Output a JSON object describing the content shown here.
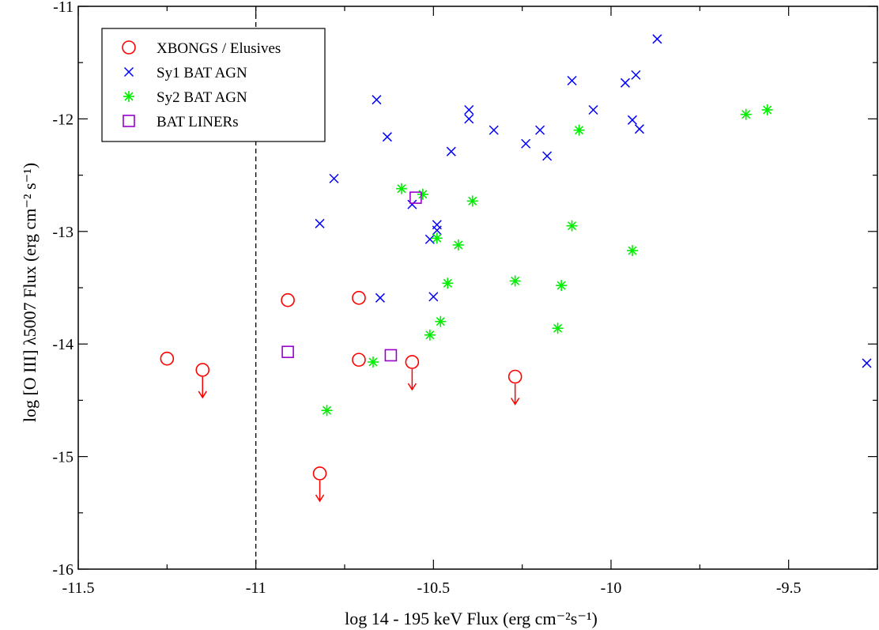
{
  "chart_data": {
    "type": "scatter",
    "xlabel": "log 14 - 195 keV Flux (erg cm⁻²s⁻¹)",
    "ylabel": "log [O III] λ5007 Flux (erg cm⁻² s⁻¹)",
    "xlim": [
      -11.5,
      -9.25
    ],
    "ylim": [
      -16,
      -11
    ],
    "x_ticks": [
      -11.5,
      -11,
      -10.5,
      -10,
      -9.5
    ],
    "x_tick_labels": [
      "-11.5",
      "-11",
      "-10.5",
      "-10",
      "-9.5"
    ],
    "y_ticks": [
      -16,
      -15,
      -14,
      -13,
      -12,
      -11
    ],
    "y_tick_labels": [
      "-16",
      "-15",
      "-14",
      "-13",
      "-12",
      "-11"
    ],
    "reference_line_x": -11,
    "legend_position": "top-left",
    "grid": false,
    "series": [
      {
        "name": "XBONGS / Elusives",
        "marker": "circle",
        "color": "#ff0000",
        "points": [
          {
            "x": -11.25,
            "y": -14.13
          },
          {
            "x": -11.15,
            "y": -14.23,
            "upper_limit": true
          },
          {
            "x": -10.91,
            "y": -13.61
          },
          {
            "x": -10.71,
            "y": -13.59
          },
          {
            "x": -10.71,
            "y": -14.14
          },
          {
            "x": -10.56,
            "y": -14.16,
            "upper_limit": true
          },
          {
            "x": -10.27,
            "y": -14.29,
            "upper_limit": true
          },
          {
            "x": -10.82,
            "y": -15.15,
            "upper_limit": true
          }
        ]
      },
      {
        "name": "Sy1 BAT AGN",
        "marker": "x",
        "color": "#0000ff",
        "points": [
          {
            "x": -10.66,
            "y": -11.83
          },
          {
            "x": -10.63,
            "y": -12.16
          },
          {
            "x": -10.78,
            "y": -12.53
          },
          {
            "x": -10.82,
            "y": -12.93
          },
          {
            "x": -10.56,
            "y": -12.76
          },
          {
            "x": -10.49,
            "y": -12.94
          },
          {
            "x": -10.49,
            "y": -12.99
          },
          {
            "x": -10.51,
            "y": -13.07
          },
          {
            "x": -10.5,
            "y": -13.58
          },
          {
            "x": -10.65,
            "y": -13.59
          },
          {
            "x": -10.45,
            "y": -12.29
          },
          {
            "x": -10.4,
            "y": -11.92
          },
          {
            "x": -10.4,
            "y": -12.0
          },
          {
            "x": -10.33,
            "y": -12.1
          },
          {
            "x": -10.24,
            "y": -12.22
          },
          {
            "x": -10.2,
            "y": -12.1
          },
          {
            "x": -10.18,
            "y": -12.33
          },
          {
            "x": -10.11,
            "y": -11.66
          },
          {
            "x": -10.05,
            "y": -11.92
          },
          {
            "x": -9.96,
            "y": -11.68
          },
          {
            "x": -9.94,
            "y": -12.01
          },
          {
            "x": -9.93,
            "y": -11.61
          },
          {
            "x": -9.92,
            "y": -12.09
          },
          {
            "x": -9.87,
            "y": -11.29
          },
          {
            "x": -9.28,
            "y": -14.17
          }
        ]
      },
      {
        "name": "Sy2 BAT AGN",
        "marker": "asterisk",
        "color": "#00ee00",
        "points": [
          {
            "x": -10.59,
            "y": -12.62
          },
          {
            "x": -10.53,
            "y": -12.67
          },
          {
            "x": -10.39,
            "y": -12.73
          },
          {
            "x": -10.49,
            "y": -13.06
          },
          {
            "x": -10.43,
            "y": -13.12
          },
          {
            "x": -10.46,
            "y": -13.46
          },
          {
            "x": -10.48,
            "y": -13.8
          },
          {
            "x": -10.51,
            "y": -13.92
          },
          {
            "x": -10.67,
            "y": -14.16
          },
          {
            "x": -10.8,
            "y": -14.59
          },
          {
            "x": -10.27,
            "y": -13.44
          },
          {
            "x": -10.14,
            "y": -13.48
          },
          {
            "x": -10.15,
            "y": -13.86
          },
          {
            "x": -10.11,
            "y": -12.95
          },
          {
            "x": -10.09,
            "y": -12.1
          },
          {
            "x": -9.94,
            "y": -13.17
          },
          {
            "x": -9.62,
            "y": -11.96
          },
          {
            "x": -9.56,
            "y": -11.92
          }
        ]
      },
      {
        "name": "BAT LINERs",
        "marker": "square",
        "color": "#9900cc",
        "points": [
          {
            "x": -10.91,
            "y": -14.07
          },
          {
            "x": -10.62,
            "y": -14.1
          },
          {
            "x": -10.55,
            "y": -12.7
          }
        ]
      }
    ]
  }
}
